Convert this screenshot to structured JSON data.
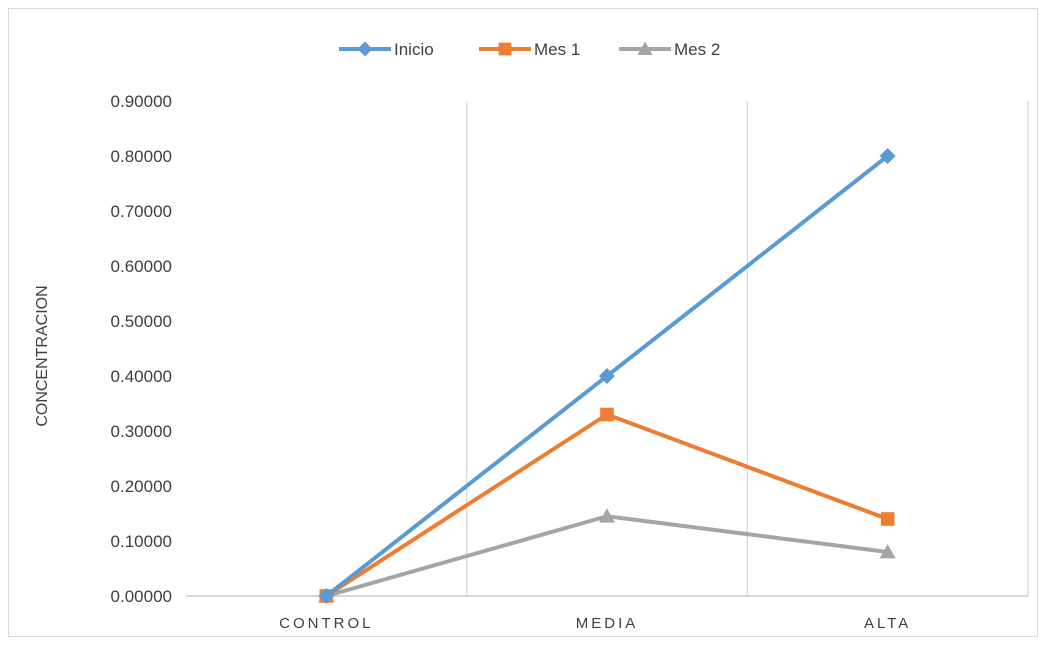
{
  "chart_data": {
    "type": "line",
    "title": "",
    "xlabel": "",
    "ylabel": "CONCENTRACION",
    "categories": [
      "CONTROL",
      "MEDIA",
      "ALTA"
    ],
    "ylim": [
      0,
      0.9
    ],
    "ytick_step": 0.1,
    "ytick_labels": [
      "0.00000",
      "0.10000",
      "0.20000",
      "0.30000",
      "0.40000",
      "0.50000",
      "0.60000",
      "0.70000",
      "0.80000",
      "0.90000"
    ],
    "grid": "vertical category separators",
    "legend_position": "top",
    "series": [
      {
        "name": "Inicio",
        "values": [
          0.0,
          0.4,
          0.8
        ],
        "color": "#5b9bd5",
        "marker": "diamond"
      },
      {
        "name": "Mes 1",
        "values": [
          0.0,
          0.33,
          0.14
        ],
        "color": "#ed7d31",
        "marker": "square"
      },
      {
        "name": "Mes 2",
        "values": [
          0.0,
          0.145,
          0.08
        ],
        "color": "#a5a5a5",
        "marker": "triangle"
      }
    ]
  }
}
